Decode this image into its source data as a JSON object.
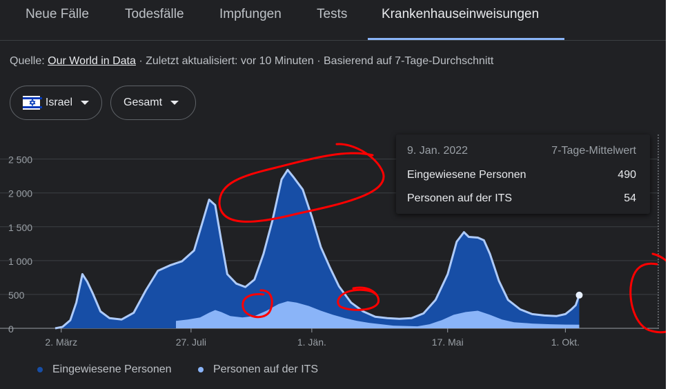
{
  "tabs": [
    "Neue Fälle",
    "Todesfälle",
    "Impfungen",
    "Tests",
    "Krankenhauseinweisungen"
  ],
  "source": {
    "prefix": "Quelle: ",
    "link": "Our World in Data",
    "suffix": " · Zuletzt aktualisiert: vor 10 Minuten · Basierend auf 7-Tage-Durchschnitt"
  },
  "filters": {
    "country": "Israel",
    "mode": "Gesamt"
  },
  "tooltip": {
    "date": "9. Jan. 2022",
    "kind": "7-Tage-Mittelwert",
    "rows": [
      {
        "label": "Eingewiesene Personen",
        "value": "490"
      },
      {
        "label": "Personen auf der ITS",
        "value": "54"
      }
    ]
  },
  "colors": {
    "admitted": "#174ea6",
    "admitted_line": "#aecbfa",
    "icu": "#8ab4f8",
    "annotation": "#ff0000"
  },
  "chart_data": {
    "type": "area",
    "x_tick_labels": [
      "2. März",
      "27. Juli",
      "1. Jän.",
      "17. Mai",
      "1. Okt."
    ],
    "y_tick_labels": [
      "0",
      "500",
      "1 000",
      "1 500",
      "2 000",
      "2 500"
    ],
    "ylim": [
      0,
      2700
    ],
    "xlim": [
      0,
      1
    ],
    "legend": [
      "Eingewiesene Personen",
      "Personen auf der ITS"
    ],
    "legend_position": "bottom",
    "series": [
      {
        "name": "Eingewiesene Personen",
        "points": [
          [
            0.0,
            0
          ],
          [
            0.012,
            20
          ],
          [
            0.025,
            120
          ],
          [
            0.035,
            380
          ],
          [
            0.045,
            800
          ],
          [
            0.053,
            690
          ],
          [
            0.062,
            520
          ],
          [
            0.075,
            250
          ],
          [
            0.09,
            150
          ],
          [
            0.11,
            130
          ],
          [
            0.13,
            230
          ],
          [
            0.15,
            560
          ],
          [
            0.17,
            850
          ],
          [
            0.19,
            930
          ],
          [
            0.21,
            990
          ],
          [
            0.23,
            1150
          ],
          [
            0.245,
            1600
          ],
          [
            0.255,
            1900
          ],
          [
            0.265,
            1820
          ],
          [
            0.275,
            1300
          ],
          [
            0.285,
            800
          ],
          [
            0.3,
            660
          ],
          [
            0.315,
            610
          ],
          [
            0.33,
            720
          ],
          [
            0.345,
            1100
          ],
          [
            0.36,
            1600
          ],
          [
            0.375,
            2200
          ],
          [
            0.385,
            2340
          ],
          [
            0.395,
            2230
          ],
          [
            0.41,
            2050
          ],
          [
            0.425,
            1650
          ],
          [
            0.44,
            1200
          ],
          [
            0.455,
            900
          ],
          [
            0.47,
            620
          ],
          [
            0.49,
            380
          ],
          [
            0.51,
            250
          ],
          [
            0.53,
            170
          ],
          [
            0.55,
            150
          ],
          [
            0.57,
            140
          ],
          [
            0.59,
            150
          ],
          [
            0.61,
            220
          ],
          [
            0.63,
            420
          ],
          [
            0.65,
            800
          ],
          [
            0.665,
            1280
          ],
          [
            0.677,
            1420
          ],
          [
            0.685,
            1350
          ],
          [
            0.7,
            1340
          ],
          [
            0.71,
            1300
          ],
          [
            0.72,
            1100
          ],
          [
            0.735,
            700
          ],
          [
            0.75,
            420
          ],
          [
            0.77,
            280
          ],
          [
            0.79,
            210
          ],
          [
            0.81,
            190
          ],
          [
            0.83,
            180
          ],
          [
            0.845,
            210
          ],
          [
            0.855,
            280
          ],
          [
            0.862,
            340
          ],
          [
            0.868,
            490
          ]
        ]
      },
      {
        "name": "Personen auf der ITS",
        "points": [
          [
            0.2,
            0
          ],
          [
            0.2,
            110
          ],
          [
            0.22,
            130
          ],
          [
            0.24,
            160
          ],
          [
            0.255,
            230
          ],
          [
            0.265,
            270
          ],
          [
            0.275,
            240
          ],
          [
            0.29,
            180
          ],
          [
            0.31,
            160
          ],
          [
            0.33,
            180
          ],
          [
            0.35,
            260
          ],
          [
            0.37,
            360
          ],
          [
            0.385,
            400
          ],
          [
            0.4,
            380
          ],
          [
            0.42,
            330
          ],
          [
            0.44,
            260
          ],
          [
            0.46,
            200
          ],
          [
            0.48,
            150
          ],
          [
            0.5,
            110
          ],
          [
            0.52,
            80
          ],
          [
            0.54,
            60
          ],
          [
            0.56,
            40
          ],
          [
            0.58,
            35
          ],
          [
            0.6,
            30
          ],
          [
            0.62,
            60
          ],
          [
            0.64,
            120
          ],
          [
            0.66,
            200
          ],
          [
            0.68,
            240
          ],
          [
            0.7,
            260
          ],
          [
            0.72,
            200
          ],
          [
            0.74,
            130
          ],
          [
            0.76,
            90
          ],
          [
            0.79,
            70
          ],
          [
            0.82,
            60
          ],
          [
            0.845,
            55
          ],
          [
            0.868,
            54
          ],
          [
            0.868,
            0
          ]
        ]
      }
    ]
  }
}
